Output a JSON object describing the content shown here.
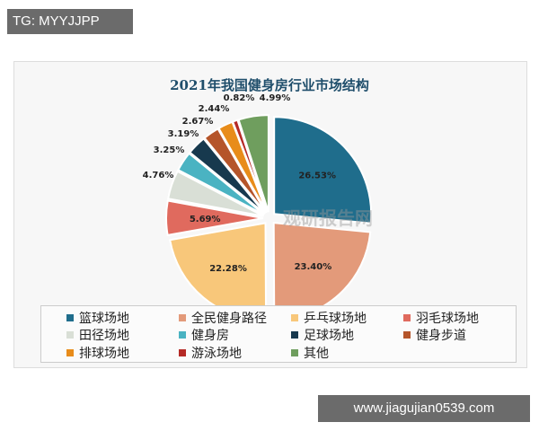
{
  "watermark_top": "TG: MYYJJPP",
  "watermark_bottom": "www.jiagujian0539.com",
  "logo_watermark": "观研报告网 chinabaogao.com",
  "chart_data": {
    "type": "pie",
    "title": "2021年我国健身房行业市场结构",
    "start": "12 o'clock, clockwise",
    "exploded": true,
    "legend_position": "bottom",
    "categories": [
      "篮球场地",
      "全民健身路径",
      "乒乓球场地",
      "羽毛球场地",
      "田径场地",
      "健身房",
      "足球场地",
      "健身步道",
      "排球场地",
      "游泳场地",
      "其他"
    ],
    "values": [
      26.53,
      23.4,
      22.28,
      5.69,
      4.76,
      3.25,
      3.19,
      2.67,
      2.44,
      0.82,
      4.99
    ],
    "labels": [
      "26.53%",
      "23.40%",
      "22.28%",
      "5.69%",
      "4.76%",
      "3.25%",
      "3.19%",
      "2.67%",
      "2.44%",
      "0.82%",
      "4.99%"
    ],
    "colors": [
      "#1f6d8c",
      "#e39a7a",
      "#f8c77a",
      "#e06a5e",
      "#d9dfd6",
      "#4ab3c2",
      "#17394e",
      "#b5552a",
      "#e88c1a",
      "#b52a26",
      "#6f9e5e"
    ]
  }
}
